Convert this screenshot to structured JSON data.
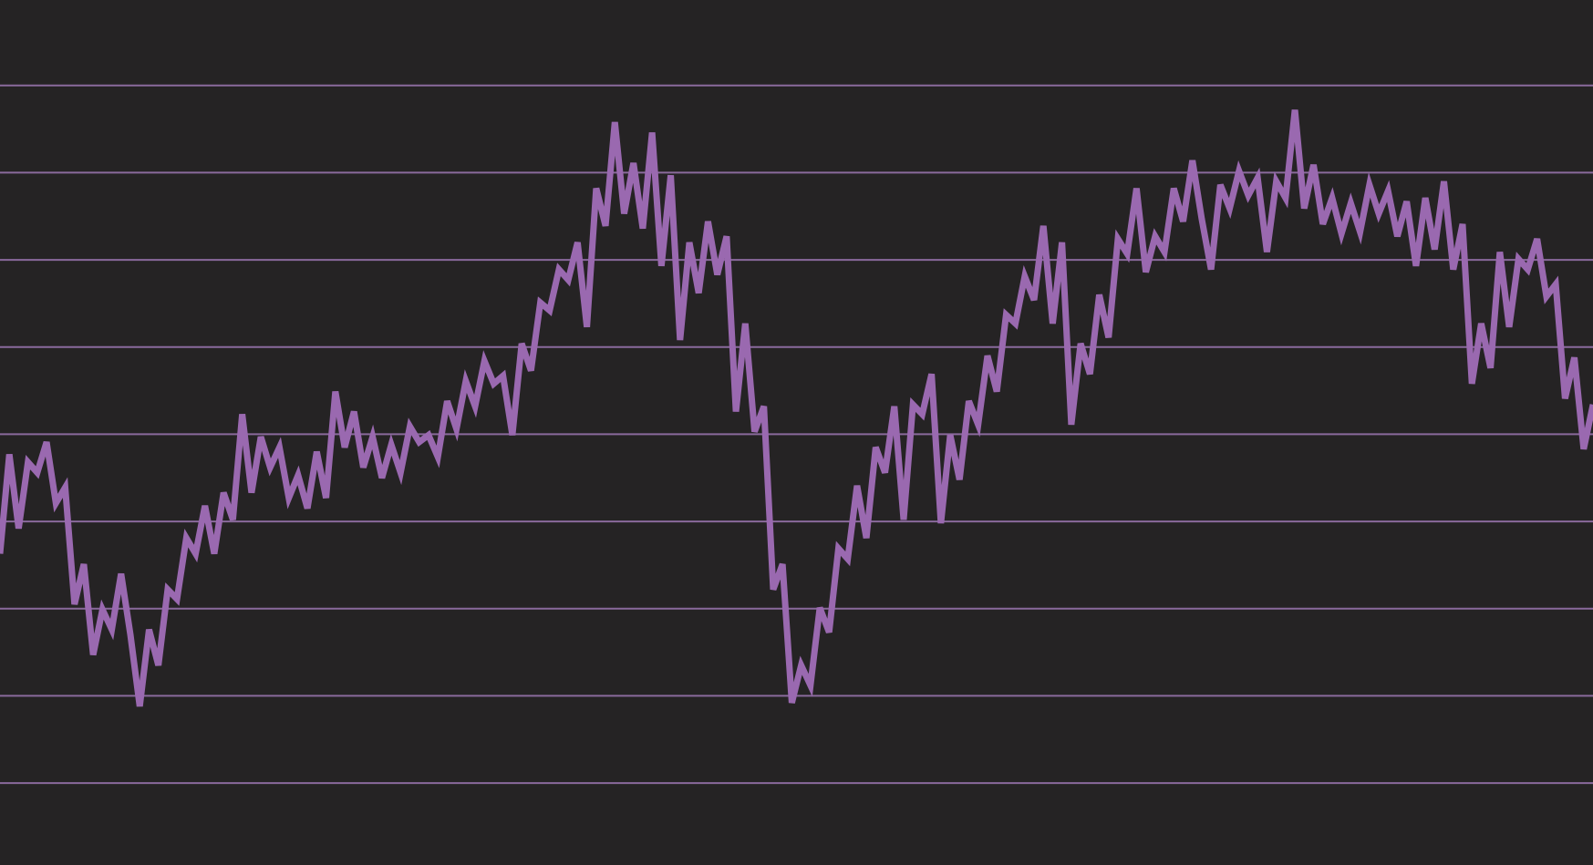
{
  "chart_data": {
    "type": "line",
    "series": [
      {
        "color": "#9a69b0",
        "values": [
          2.63,
          3.77,
          2.92,
          3.68,
          3.56,
          3.91,
          3.21,
          3.39,
          2.05,
          2.51,
          1.47,
          1.99,
          1.76,
          2.4,
          1.7,
          0.88,
          1.76,
          1.35,
          2.22,
          2.11,
          2.81,
          2.63,
          3.18,
          2.63,
          3.33,
          3.02,
          4.23,
          3.33,
          3.97,
          3.62,
          3.85,
          3.27,
          3.53,
          3.15,
          3.8,
          3.27,
          4.49,
          3.85,
          4.26,
          3.62,
          3.97,
          3.5,
          3.88,
          3.56,
          4.09,
          3.91,
          3.99,
          3.74,
          4.38,
          4.06,
          4.61,
          4.32,
          4.84,
          4.58,
          4.67,
          3.99,
          5.04,
          4.73,
          5.51,
          5.42,
          5.89,
          5.77,
          6.2,
          5.23,
          6.82,
          6.39,
          7.58,
          6.53,
          7.11,
          6.36,
          7.46,
          5.93,
          6.97,
          5.08,
          6.2,
          5.62,
          6.44,
          5.83,
          6.27,
          4.26,
          5.27,
          4.03,
          4.32,
          2.22,
          2.51,
          0.92,
          1.35,
          1.12,
          2.01,
          1.73,
          2.69,
          2.57,
          3.41,
          2.81,
          3.85,
          3.56,
          4.32,
          3.02,
          4.34,
          4.23,
          4.69,
          2.98,
          3.99,
          3.48,
          4.38,
          4.11,
          4.9,
          4.49,
          5.37,
          5.27,
          5.81,
          5.54,
          6.39,
          5.27,
          6.2,
          4.11,
          5.04,
          4.69,
          5.6,
          5.11,
          6.24,
          6.07,
          6.82,
          5.86,
          6.27,
          6.09,
          6.82,
          6.44,
          7.14,
          6.47,
          5.89,
          6.86,
          6.59,
          7.02,
          6.74,
          6.94,
          6.09,
          6.9,
          6.71,
          7.72,
          6.59,
          7.09,
          6.41,
          6.71,
          6.3,
          6.65,
          6.32,
          6.86,
          6.53,
          6.79,
          6.27,
          6.67,
          5.93,
          6.71,
          6.12,
          6.9,
          5.89,
          6.41,
          4.58,
          5.27,
          4.76,
          6.09,
          5.23,
          6.01,
          5.89,
          6.24,
          5.58,
          5.72,
          4.41,
          4.88,
          3.83,
          4.34
        ]
      }
    ],
    "ylim": [
      -0.94,
      8.98
    ],
    "yticks": [
      0,
      1,
      2,
      3,
      4,
      5,
      6,
      7,
      8
    ],
    "grid": true,
    "grid_color": "#8a6a9c"
  }
}
